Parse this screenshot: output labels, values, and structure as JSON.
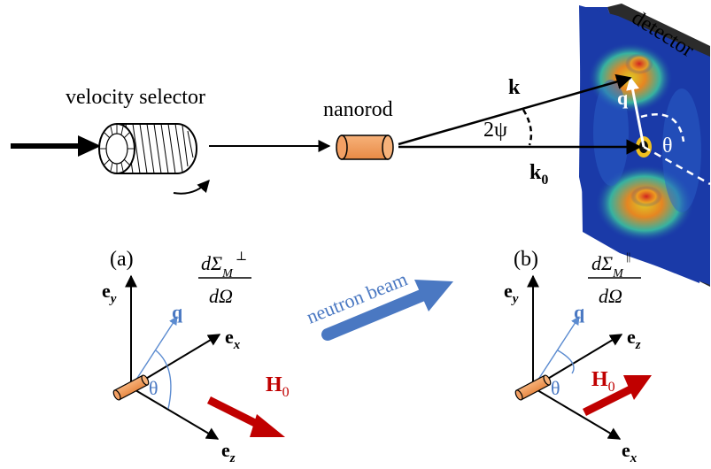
{
  "top": {
    "velocity_selector_label": "velocity selector",
    "nanorod_label": "nanorod",
    "detector_label": "detector",
    "k_label": "k",
    "k0_main": "k",
    "k0_sub": "0",
    "angle_label": "2ψ",
    "q_label": "q",
    "theta_label": "θ"
  },
  "beam_label": "neutron beam",
  "panel_a": {
    "tag": "(a)",
    "formula_top": "dΣ",
    "formula_sub": "M",
    "formula_sup": "⊥",
    "formula_bottom": "dΩ",
    "ey_main": "e",
    "ey_sub": "y",
    "ex_main": "e",
    "ex_sub": "x",
    "ez_main": "e",
    "ez_sub": "z",
    "q_label": "q",
    "theta_label": "θ",
    "field_main": "H",
    "field_sub": "0"
  },
  "panel_b": {
    "tag": "(b)",
    "formula_top": "dΣ",
    "formula_sub": "M",
    "formula_sup": "||",
    "formula_bottom": "dΩ",
    "ey_main": "e",
    "ey_sub": "y",
    "ez_main": "e",
    "ez_sub": "z",
    "ex_main": "e",
    "ex_sub": "x",
    "q_label": "q",
    "theta_label": "θ",
    "field_main": "H",
    "field_sub": "0"
  },
  "colors": {
    "rod_orange": "#f0a060",
    "q_blue": "#4a78c2",
    "beam_blue": "#4a78c2",
    "field_red": "#c00000",
    "detector_bg": "#1a3aa8"
  }
}
